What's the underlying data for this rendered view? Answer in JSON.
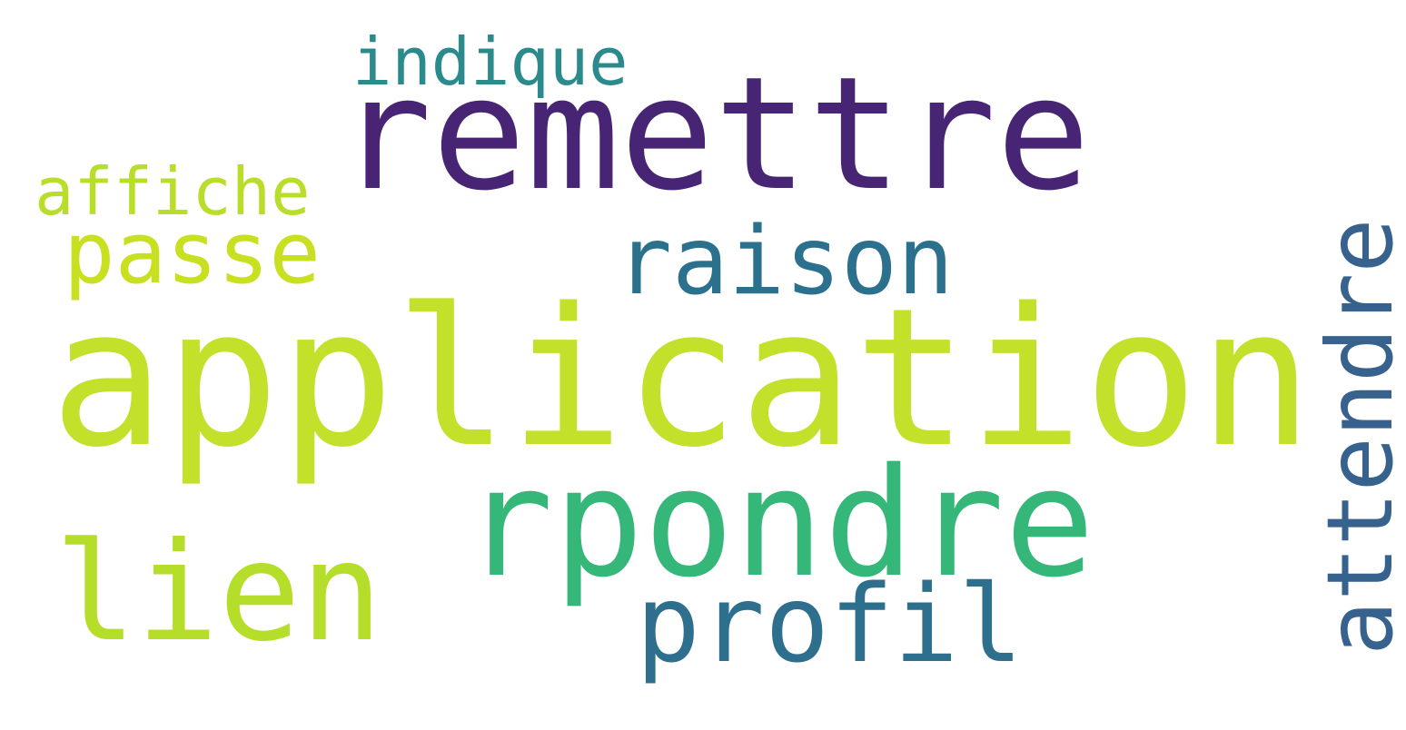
{
  "words": [
    {
      "id": "application",
      "text": "application",
      "color": "#c3e02a"
    },
    {
      "id": "remettre",
      "text": "remettre",
      "color": "#472574"
    },
    {
      "id": "rpondre",
      "text": "rpondre",
      "color": "#35b779"
    },
    {
      "id": "lien",
      "text": "lien",
      "color": "#b5de2b"
    },
    {
      "id": "profil",
      "text": "profil",
      "color": "#2f6f8e"
    },
    {
      "id": "raison",
      "text": "raison",
      "color": "#2b718e"
    },
    {
      "id": "attendre",
      "text": "attendre",
      "color": "#36628d",
      "orientation": "vertical"
    },
    {
      "id": "passe",
      "text": "passe",
      "color": "#c8e020"
    },
    {
      "id": "affiche",
      "text": "affiche",
      "color": "#b8de29"
    },
    {
      "id": "indique",
      "text": "indique",
      "color": "#2a8a8c"
    }
  ]
}
